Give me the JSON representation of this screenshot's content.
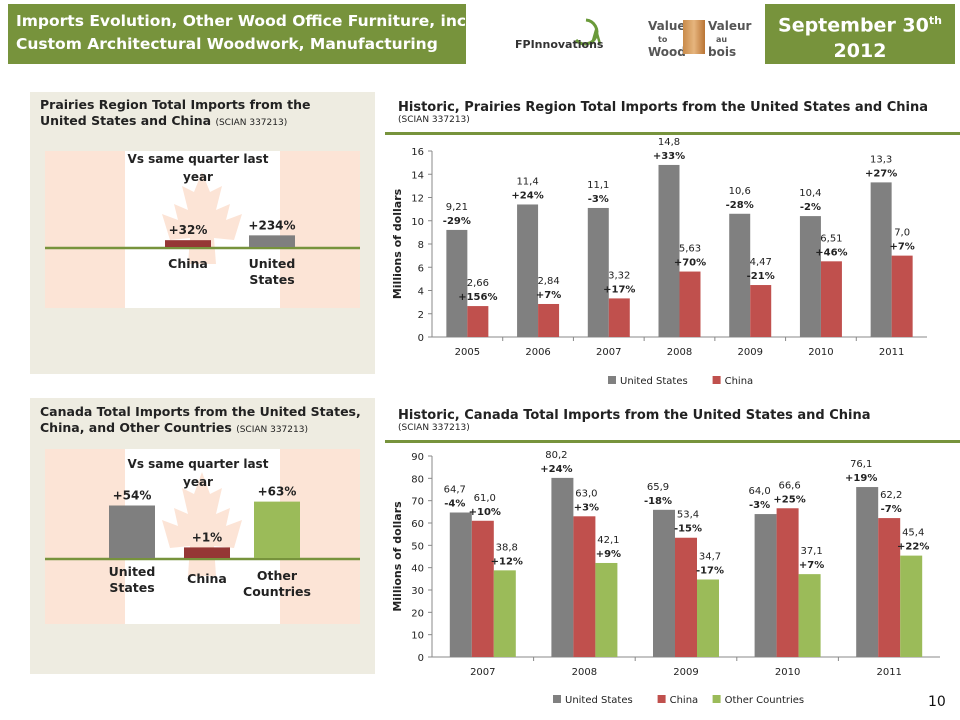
{
  "header": {
    "title_line1": "Imports Evolution, Other Wood Office Furniture, including",
    "title_line2": "Custom Architectural Woodwork, Manufacturing",
    "date_main": "September 30",
    "date_sup": "th",
    "date_year": "2012",
    "logos": {
      "fp": "FPInnovations",
      "vw1": "Value",
      "vw2": "to",
      "vw3": "Wood",
      "va1": "Valeur",
      "va2": "au",
      "va3": "bois"
    }
  },
  "prairies_summary": {
    "title": "Prairies Region Total Imports from the United States and China",
    "code": "(SCIAN  337213)",
    "heading": "Vs same quarter last year",
    "bars": [
      {
        "label": "China",
        "value_label": "+32%",
        "value": 32,
        "color": "#953735"
      },
      {
        "label": "United States",
        "value_label": "+234%",
        "value": 234,
        "color": "#7f7f7f"
      }
    ]
  },
  "canada_summary": {
    "title1": "Canada Total Imports from the United States,",
    "title2": "China, and Other Countries",
    "code": "(SCIAN  337213)",
    "heading": "Vs same quarter last year",
    "bars": [
      {
        "label": "United States",
        "value_label": "+54%",
        "value": 54,
        "color": "#7f7f7f"
      },
      {
        "label": "China",
        "value_label": "+1%",
        "value": 1,
        "color": "#953735"
      },
      {
        "label": "Other Countries",
        "value_label": "+63%",
        "value": 63,
        "color": "#9bbb59"
      }
    ]
  },
  "chart_data": [
    {
      "type": "bar",
      "title": "Historic, Prairies Region Total Imports from the United States and China",
      "subtitle": "(SCIAN 337213)",
      "ylabel": "Millions of dollars",
      "ylim": [
        0,
        16
      ],
      "yticks": [
        0,
        2,
        4,
        6,
        8,
        10,
        12,
        14,
        16
      ],
      "categories": [
        "2005",
        "2006",
        "2007",
        "2008",
        "2009",
        "2010",
        "2011"
      ],
      "legend": "bottom",
      "series": [
        {
          "name": "United States",
          "color": "#808080",
          "values": [
            9.21,
            11.4,
            11.1,
            14.8,
            10.6,
            10.4,
            13.3
          ],
          "labels": [
            "9,21",
            "11,4",
            "11,1",
            "14,8",
            "10,6",
            "10,4",
            "13,3"
          ],
          "changes": [
            "-29%",
            "+24%",
            "-3%",
            "+33%",
            "-28%",
            "-2%",
            "+27%"
          ]
        },
        {
          "name": "China",
          "color": "#c0504d",
          "values": [
            2.66,
            2.84,
            3.32,
            5.63,
            4.47,
            6.51,
            7.0
          ],
          "labels": [
            "2,66",
            "2,84",
            "3,32",
            "5,63",
            "4,47",
            "6,51",
            "7,0"
          ],
          "changes": [
            "+156%",
            "+7%",
            "+17%",
            "+70%",
            "-21%",
            "+46%",
            "+7%"
          ]
        }
      ]
    },
    {
      "type": "bar",
      "title": "Historic, Canada Total Imports from the United States and China",
      "subtitle": "(SCIAN 337213)",
      "ylabel": "Millions of dollars",
      "ylim": [
        0,
        90
      ],
      "yticks": [
        0,
        10,
        20,
        30,
        40,
        50,
        60,
        70,
        80,
        90
      ],
      "categories": [
        "2007",
        "2008",
        "2009",
        "2010",
        "2011"
      ],
      "legend": "bottom",
      "series": [
        {
          "name": "United States",
          "color": "#808080",
          "values": [
            64.7,
            80.2,
            65.9,
            64.0,
            76.1
          ],
          "labels": [
            "64,7",
            "80,2",
            "65,9",
            "64,0",
            "76,1"
          ],
          "changes": [
            "-4%",
            "+24%",
            "-18%",
            "-3%",
            "+19%"
          ]
        },
        {
          "name": "China",
          "color": "#c0504d",
          "values": [
            61.0,
            63.0,
            53.4,
            66.6,
            62.2
          ],
          "labels": [
            "61,0",
            "63,0",
            "53,4",
            "66,6",
            "62,2"
          ],
          "changes": [
            "+10%",
            "+3%",
            "-15%",
            "+25%",
            "-7%"
          ]
        },
        {
          "name": "Other Countries",
          "color": "#9bbb59",
          "values": [
            38.8,
            42.1,
            34.7,
            37.1,
            45.4
          ],
          "labels": [
            "38,8",
            "42,1",
            "34,7",
            "37,1",
            "45,4"
          ],
          "changes": [
            "+12%",
            "+9%",
            "-17%",
            "+7%",
            "+22%"
          ]
        }
      ]
    }
  ],
  "page_number": "10"
}
